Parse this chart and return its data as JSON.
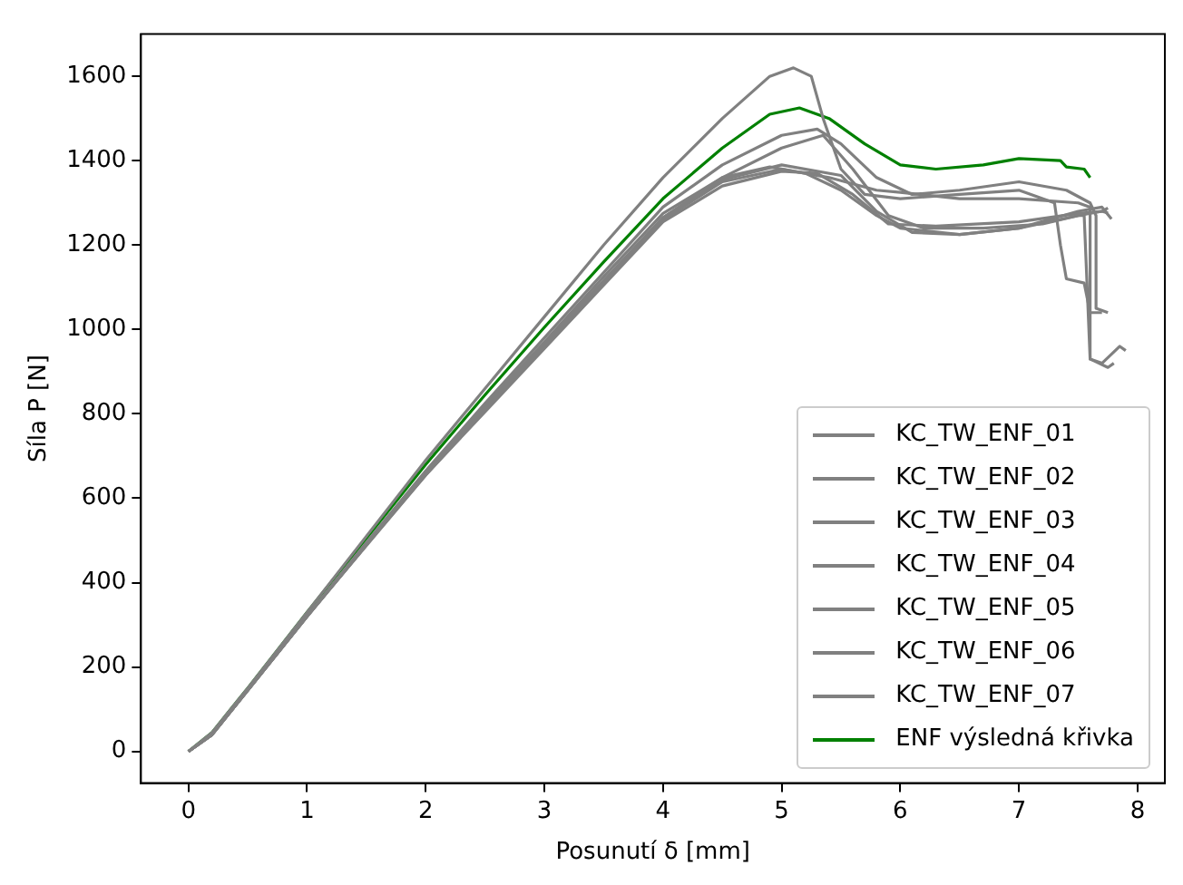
{
  "chart_data": {
    "type": "line",
    "xlabel": "Posunutí δ [mm]",
    "ylabel": "Síla P [N]",
    "xlim": [
      -0.4,
      8.23
    ],
    "ylim": [
      -75,
      1700
    ],
    "xticks": [
      0,
      1,
      2,
      3,
      4,
      5,
      6,
      7,
      8
    ],
    "yticks": [
      0,
      200,
      400,
      600,
      800,
      1000,
      1200,
      1400,
      1600
    ],
    "grid": false,
    "legend": "bottom right",
    "marker": "none",
    "line_style": "solid",
    "series": [
      {
        "name": "KC_TW_ENF_01",
        "color": "#808080",
        "x": [
          0,
          0.2,
          0.5,
          1,
          1.5,
          2,
          2.5,
          3,
          3.5,
          4,
          4.5,
          4.9,
          5.1,
          5.25,
          5.35,
          5.5,
          5.7,
          6,
          6.5,
          7,
          7.3,
          7.35,
          7.4,
          7.55,
          7.6,
          7.7
        ],
        "values": [
          0,
          45,
          150,
          330,
          510,
          690,
          860,
          1030,
          1200,
          1360,
          1500,
          1600,
          1620,
          1600,
          1500,
          1380,
          1320,
          1310,
          1320,
          1330,
          1300,
          1200,
          1120,
          1110,
          1040,
          1040
        ]
      },
      {
        "name": "KC_TW_ENF_02",
        "color": "#808080",
        "x": [
          0,
          0.2,
          0.5,
          1,
          1.5,
          2,
          2.5,
          3,
          3.5,
          4,
          4.5,
          5,
          5.3,
          5.5,
          5.8,
          6.1,
          6.5,
          7,
          7.4,
          7.6,
          7.65,
          7.65,
          7.75
        ],
        "values": [
          0,
          40,
          145,
          320,
          495,
          665,
          825,
          980,
          1135,
          1290,
          1390,
          1460,
          1475,
          1440,
          1360,
          1320,
          1330,
          1350,
          1330,
          1300,
          1270,
          1050,
          1040
        ]
      },
      {
        "name": "KC_TW_ENF_03",
        "color": "#808080",
        "x": [
          0,
          0.2,
          0.5,
          1,
          1.5,
          2,
          2.5,
          3,
          3.5,
          4,
          4.5,
          5,
          5.35,
          5.6,
          5.9,
          6.2,
          6.7,
          7.2,
          7.5,
          7.55,
          7.6,
          7.7,
          7.85,
          7.9
        ],
        "values": [
          0,
          40,
          145,
          320,
          490,
          660,
          815,
          965,
          1115,
          1265,
          1360,
          1430,
          1460,
          1380,
          1270,
          1240,
          1240,
          1250,
          1270,
          1270,
          930,
          920,
          960,
          950
        ]
      },
      {
        "name": "KC_TW_ENF_04",
        "color": "#808080",
        "x": [
          0,
          0.2,
          0.5,
          1,
          1.5,
          2,
          2.5,
          3,
          3.5,
          4,
          4.5,
          4.9,
          5.2,
          5.5,
          5.8,
          6,
          6.5,
          7,
          7.5,
          7.7,
          7.75
        ],
        "values": [
          0,
          40,
          145,
          320,
          490,
          660,
          820,
          970,
          1125,
          1275,
          1360,
          1385,
          1370,
          1330,
          1270,
          1240,
          1225,
          1240,
          1270,
          1280,
          1288
        ]
      },
      {
        "name": "KC_TW_ENF_05",
        "color": "#808080",
        "x": [
          0,
          0.2,
          0.5,
          1,
          1.5,
          2,
          2.5,
          3,
          3.5,
          4,
          4.5,
          5,
          5.4,
          5.8,
          6,
          6.5,
          7,
          7.5,
          7.6,
          7.6,
          7.75,
          7.8
        ],
        "values": [
          0,
          40,
          145,
          320,
          490,
          655,
          810,
          960,
          1110,
          1260,
          1350,
          1380,
          1360,
          1330,
          1325,
          1310,
          1310,
          1300,
          1290,
          930,
          910,
          920
        ]
      },
      {
        "name": "KC_TW_ENF_06",
        "color": "#808080",
        "x": [
          0,
          0.2,
          0.5,
          1,
          1.5,
          2,
          2.5,
          3,
          3.5,
          4,
          4.5,
          5,
          5.3,
          5.6,
          5.9,
          6.3,
          7,
          7.5,
          7.7,
          7.75
        ],
        "values": [
          0,
          40,
          145,
          320,
          488,
          655,
          805,
          955,
          1105,
          1255,
          1340,
          1375,
          1370,
          1320,
          1250,
          1245,
          1255,
          1275,
          1280,
          1276
        ]
      },
      {
        "name": "KC_TW_ENF_07",
        "color": "#808080",
        "x": [
          0,
          0.2,
          0.5,
          1,
          1.5,
          2,
          2.5,
          3,
          3.5,
          4,
          4.5,
          5,
          5.5,
          5.8,
          6.1,
          6.5,
          7,
          7.5,
          7.7,
          7.78
        ],
        "values": [
          0,
          40,
          145,
          320,
          490,
          660,
          815,
          965,
          1115,
          1265,
          1355,
          1390,
          1365,
          1280,
          1230,
          1225,
          1240,
          1280,
          1290,
          1262
        ]
      },
      {
        "name": "ENF výsledná křivka",
        "color": "#008000",
        "x": [
          0,
          0.2,
          0.5,
          1,
          1.5,
          2,
          2.5,
          3,
          3.5,
          4,
          4.5,
          4.9,
          5.15,
          5.4,
          5.7,
          6,
          6.3,
          6.7,
          7,
          7.35,
          7.4,
          7.55,
          7.6
        ],
        "values": [
          0,
          45,
          150,
          330,
          505,
          680,
          845,
          1005,
          1160,
          1310,
          1430,
          1510,
          1525,
          1500,
          1440,
          1390,
          1380,
          1390,
          1405,
          1400,
          1385,
          1380,
          1360
        ]
      }
    ]
  }
}
